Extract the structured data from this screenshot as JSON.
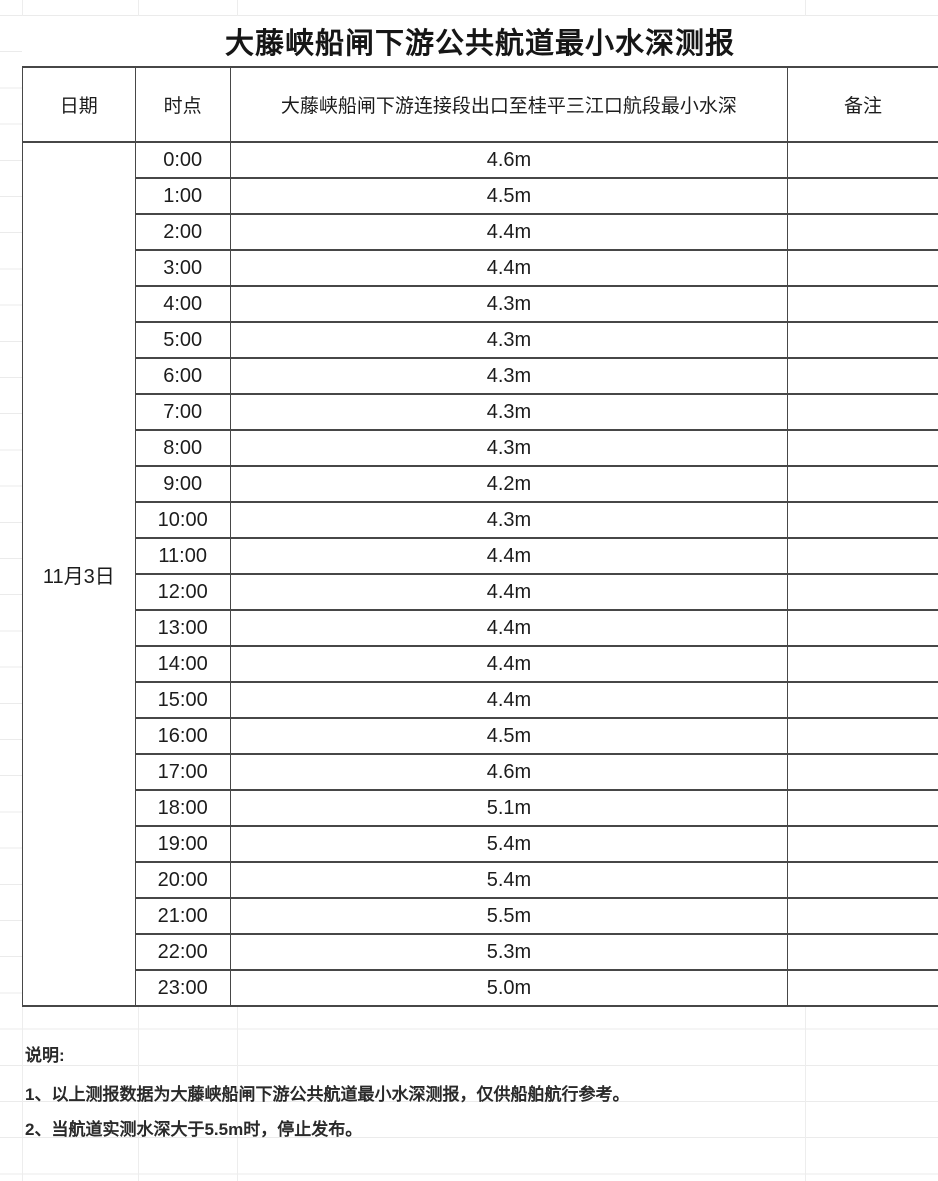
{
  "title": "大藤峡船闸下游公共航道最小水深测报",
  "table": {
    "headers": {
      "date": "日期",
      "time": "时点",
      "depth": "大藤峡船闸下游连接段出口至桂平三江口航段最小水深",
      "remark": "备注"
    },
    "date_label": "11月3日",
    "rows": [
      {
        "time": "0:00",
        "depth": "4.6m",
        "remark": ""
      },
      {
        "time": "1:00",
        "depth": "4.5m",
        "remark": ""
      },
      {
        "time": "2:00",
        "depth": "4.4m",
        "remark": ""
      },
      {
        "time": "3:00",
        "depth": "4.4m",
        "remark": ""
      },
      {
        "time": "4:00",
        "depth": "4.3m",
        "remark": ""
      },
      {
        "time": "5:00",
        "depth": "4.3m",
        "remark": ""
      },
      {
        "time": "6:00",
        "depth": "4.3m",
        "remark": ""
      },
      {
        "time": "7:00",
        "depth": "4.3m",
        "remark": ""
      },
      {
        "time": "8:00",
        "depth": "4.3m",
        "remark": ""
      },
      {
        "time": "9:00",
        "depth": "4.2m",
        "remark": ""
      },
      {
        "time": "10:00",
        "depth": "4.3m",
        "remark": ""
      },
      {
        "time": "11:00",
        "depth": "4.4m",
        "remark": ""
      },
      {
        "time": "12:00",
        "depth": "4.4m",
        "remark": ""
      },
      {
        "time": "13:00",
        "depth": "4.4m",
        "remark": ""
      },
      {
        "time": "14:00",
        "depth": "4.4m",
        "remark": ""
      },
      {
        "time": "15:00",
        "depth": "4.4m",
        "remark": ""
      },
      {
        "time": "16:00",
        "depth": "4.5m",
        "remark": ""
      },
      {
        "time": "17:00",
        "depth": "4.6m",
        "remark": ""
      },
      {
        "time": "18:00",
        "depth": "5.1m",
        "remark": ""
      },
      {
        "time": "19:00",
        "depth": "5.4m",
        "remark": ""
      },
      {
        "time": "20:00",
        "depth": "5.4m",
        "remark": ""
      },
      {
        "time": "21:00",
        "depth": "5.5m",
        "remark": ""
      },
      {
        "time": "22:00",
        "depth": "5.3m",
        "remark": ""
      },
      {
        "time": "23:00",
        "depth": "5.0m",
        "remark": ""
      }
    ]
  },
  "notes": {
    "label": "说明:",
    "items": [
      "1、以上测报数据为大藤峡船闸下游公共航道最小水深测报，仅供船舶航行参考。",
      "2、当航道实测水深大于5.5m时，停止发布。"
    ]
  },
  "colors": {
    "table_border": "#474747",
    "sheet_grid": "#ebebeb",
    "text": "#1c1c1c",
    "background": "#ffffff"
  }
}
